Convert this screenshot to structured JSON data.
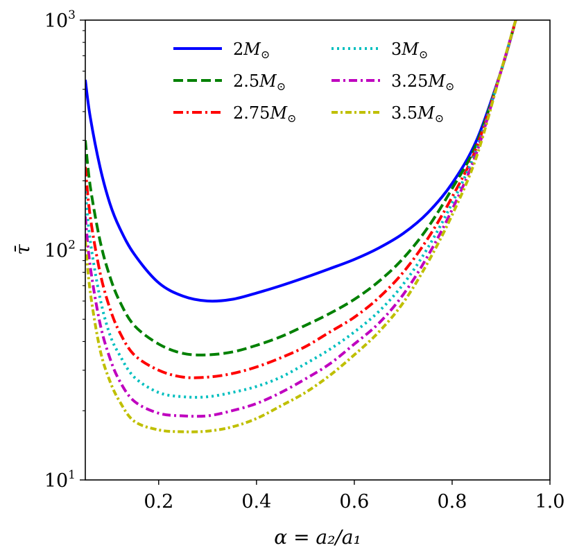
{
  "chart_data": {
    "type": "line",
    "title": "",
    "xlabel": "α = a₂/a₁",
    "ylabel": "τ̄",
    "xlim": [
      0.05,
      1.0
    ],
    "ylim": [
      10,
      1000
    ],
    "yscale": "log",
    "grid": false,
    "legend_position": "top-center",
    "x_ticks": [
      {
        "value": 0.2,
        "label": "0.2"
      },
      {
        "value": 0.4,
        "label": "0.4"
      },
      {
        "value": 0.6,
        "label": "0.6"
      },
      {
        "value": 0.8,
        "label": "0.8"
      },
      {
        "value": 1.0,
        "label": "1.0"
      }
    ],
    "y_ticks": [
      {
        "value": 10,
        "base": "10",
        "exp": "1"
      },
      {
        "value": 100,
        "base": "10",
        "exp": "2"
      },
      {
        "value": 1000,
        "base": "10",
        "exp": "3"
      }
    ],
    "x": [
      0.05,
      0.06,
      0.08,
      0.1,
      0.12,
      0.15,
      0.2,
      0.25,
      0.3,
      0.35,
      0.4,
      0.45,
      0.5,
      0.55,
      0.6,
      0.65,
      0.7,
      0.75,
      0.8,
      0.85,
      0.9,
      0.93
    ],
    "series": [
      {
        "name": "2M⊙",
        "label": "2M",
        "color": "#0000ff",
        "dash": "solid",
        "values": [
          550,
          380,
          230,
          160,
          125,
          96,
          72,
          63,
          60,
          61,
          65,
          70,
          76,
          83,
          91,
          102,
          118,
          145,
          195,
          300,
          600,
          1000
        ]
      },
      {
        "name": "2.5M⊙",
        "label": "2.5M",
        "color": "#008000",
        "dash": "dashed",
        "values": [
          300,
          190,
          110,
          77,
          60,
          47,
          39,
          35.5,
          35,
          36,
          38.5,
          42,
          47,
          53,
          61,
          73,
          92,
          125,
          185,
          290,
          600,
          1000
        ]
      },
      {
        "name": "2.75M⊙",
        "label": "2.75M",
        "color": "#ff0000",
        "dash": "dashdot",
        "values": [
          230,
          140,
          80,
          56,
          44,
          35,
          30,
          28,
          28,
          29,
          31,
          34,
          38,
          44,
          51,
          62,
          80,
          112,
          170,
          280,
          600,
          1000
        ]
      },
      {
        "name": "3M⊙",
        "label": "3M",
        "color": "#00bfbf",
        "dash": "dotted",
        "values": [
          180,
          110,
          62,
          43,
          35,
          28,
          24,
          23,
          23,
          24,
          25.5,
          28,
          32,
          37,
          44,
          54,
          71,
          102,
          160,
          275,
          600,
          1000
        ]
      },
      {
        "name": "3.25M⊙",
        "label": "3.25M",
        "color": "#bf00bf",
        "dash": "dashdot2",
        "values": [
          140,
          85,
          48,
          34,
          27,
          22,
          19.5,
          19,
          19,
          20,
          21.5,
          24,
          27.5,
          32,
          39,
          48,
          64,
          94,
          150,
          265,
          600,
          1000
        ]
      },
      {
        "name": "3.5M⊙",
        "label": "3.5M",
        "color": "#bfbf00",
        "dash": "dashdot3",
        "values": [
          110,
          66,
          37,
          27,
          22,
          18,
          16.5,
          16.2,
          16.3,
          17,
          18.5,
          21,
          24,
          28.5,
          35,
          44,
          59,
          88,
          142,
          255,
          600,
          1000
        ]
      }
    ]
  }
}
